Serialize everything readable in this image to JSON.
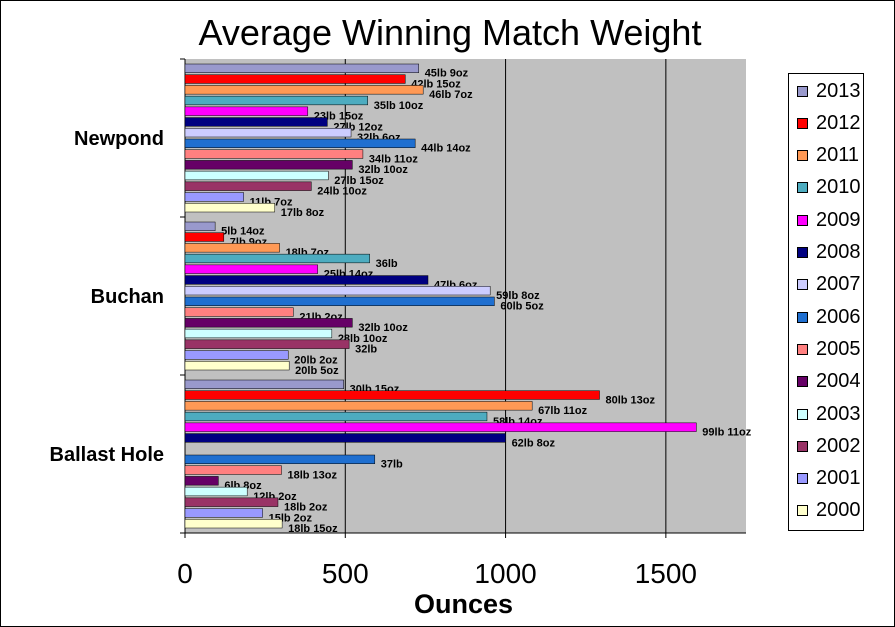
{
  "chart_data": {
    "type": "bar",
    "orientation": "horizontal",
    "title": "Average Winning Match Weight",
    "xlabel": "Ounces",
    "ylabel": "",
    "xlim": [
      0,
      1750
    ],
    "xticks": [
      0,
      500,
      1000,
      1500
    ],
    "plot_background": "#c0c0c0",
    "grid": "vertical major lines",
    "legend_position": "right",
    "categories": [
      "Newpond",
      "Buchan",
      "Ballast Hole"
    ],
    "series": [
      {
        "name": "2013",
        "color": "#9999cc",
        "values": [
          729,
          94,
          495
        ],
        "labels": [
          "45lb 9oz",
          "5lb 14oz",
          "30lb 15oz"
        ]
      },
      {
        "name": "2012",
        "color": "#ff0000",
        "values": [
          687,
          121,
          1293
        ],
        "labels": [
          "42lb 15oz",
          "7lb 9oz",
          "80lb 13oz"
        ]
      },
      {
        "name": "2011",
        "color": "#ff9955",
        "values": [
          743,
          295,
          1083
        ],
        "labels": [
          "46lb 7oz",
          "18lb 7oz",
          "67lb 11oz"
        ]
      },
      {
        "name": "2010",
        "color": "#4dacc0",
        "values": [
          570,
          576,
          942
        ],
        "labels": [
          "35lb 10oz",
          "36lb",
          "58lb 14oz"
        ]
      },
      {
        "name": "2009",
        "color": "#ff00ff",
        "values": [
          383,
          414,
          1595
        ],
        "labels": [
          "23lb 15oz",
          "25lb 14oz",
          "99lb 11oz"
        ]
      },
      {
        "name": "2008",
        "color": "#000080",
        "values": [
          444,
          758,
          1000
        ],
        "labels": [
          "27lb 12oz",
          "47lb 6oz",
          "62lb 8oz"
        ]
      },
      {
        "name": "2007",
        "color": "#ccccff",
        "values": [
          518,
          952,
          null
        ],
        "labels": [
          "32lb 6oz",
          "59lb 8oz",
          ""
        ]
      },
      {
        "name": "2006",
        "color": "#1f6fd0",
        "values": [
          718,
          965,
          592
        ],
        "labels": [
          "44lb 14oz",
          "60lb 5oz",
          "37lb"
        ]
      },
      {
        "name": "2005",
        "color": "#ff8080",
        "values": [
          555,
          338,
          301
        ],
        "labels": [
          "34lb 11oz",
          "21lb 2oz",
          "18lb 13oz"
        ]
      },
      {
        "name": "2004",
        "color": "#660066",
        "values": [
          522,
          522,
          104
        ],
        "labels": [
          "32lb 10oz",
          "32lb 10oz",
          "6lb 8oz"
        ]
      },
      {
        "name": "2003",
        "color": "#ccffff",
        "values": [
          447,
          458,
          194
        ],
        "labels": [
          "27lb 15oz",
          "28lb 10oz",
          "12lb 2oz"
        ]
      },
      {
        "name": "2002",
        "color": "#993366",
        "values": [
          394,
          512,
          290
        ],
        "labels": [
          "24lb 10oz",
          "32lb",
          "18lb 2oz"
        ]
      },
      {
        "name": "2001",
        "color": "#9999ff",
        "values": [
          183,
          322,
          242
        ],
        "labels": [
          "11lb 7oz",
          "20lb 2oz",
          "15lb 2oz"
        ]
      },
      {
        "name": "2000",
        "color": "#ffffcc",
        "values": [
          280,
          325,
          303
        ],
        "labels": [
          "17lb 8oz",
          "20lb 5oz",
          "18lb 15oz"
        ]
      }
    ],
    "legend_order": [
      "2013",
      "2012",
      "2011",
      "2010",
      "2009",
      "2008",
      "2007",
      "2006",
      "2005",
      "2004",
      "2003",
      "2002",
      "2001",
      "2000"
    ]
  }
}
